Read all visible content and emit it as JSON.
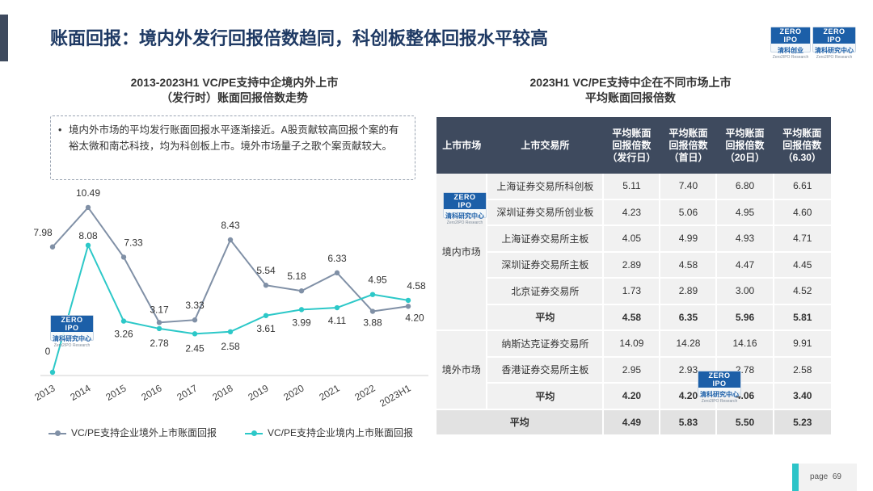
{
  "page_title": "账面回报：境内外发行回报倍数趋同，科创板整体回报水平较高",
  "logo": {
    "brand_left": "ZERO",
    "brand_right": "IPO",
    "cn": "清科研究中心",
    "en": "Zero2IPO Research",
    "top_right_cn": "清科创业"
  },
  "chart": {
    "title_line1": "2013-2023H1 VC/PE支持中企境内外上市",
    "title_line2": "（发行时）账面回报倍数走势",
    "note": "境内外市场的平均发行账面回报水平逐渐接近。A股贡献较高回报个案的有裕太微和南芯科技，均为科创板上市。境外市场量子之歌个案贡献较大。"
  },
  "chart_data": {
    "type": "line",
    "title": "2013-2023H1 VC/PE支持中企境内外上市（发行时）账面回报倍数走势",
    "categories": [
      "2013",
      "2014",
      "2015",
      "2016",
      "2017",
      "2018",
      "2019",
      "2020",
      "2021",
      "2022",
      "2023H1"
    ],
    "series": [
      {
        "name": "VC/PE支持企业境外上市账面回报",
        "color": "#8090a6",
        "values": [
          7.98,
          10.49,
          7.33,
          3.17,
          3.33,
          8.43,
          5.54,
          5.18,
          6.33,
          3.88,
          4.2
        ]
      },
      {
        "name": "VC/PE支持企业境内上市账面回报",
        "color": "#2cc8c8",
        "values": [
          0,
          8.08,
          3.26,
          2.78,
          2.45,
          2.58,
          3.61,
          3.99,
          4.11,
          4.95,
          4.58
        ]
      }
    ],
    "ylim": [
      0,
      11
    ],
    "grid": false,
    "legend": "bottom"
  },
  "table": {
    "title_line1": "2023H1 VC/PE支持中企在不同市场上市",
    "title_line2": "平均账面回报倍数",
    "headers": {
      "market": "上市市场",
      "exchange": "上市交易所",
      "c1": [
        "平均账面",
        "回报倍数",
        "（发行日）"
      ],
      "c2": [
        "平均账面",
        "回报倍数",
        "（首日）"
      ],
      "c3": [
        "平均账面",
        "回报倍数",
        "（20日）"
      ],
      "c4": [
        "平均账面",
        "回报倍数",
        "（6.30）"
      ]
    },
    "domestic_label": "境内市场",
    "overseas_label": "境外市场",
    "domestic_rows": [
      {
        "name": "上海证券交易所科创板",
        "v": [
          "5.11",
          "7.40",
          "6.80",
          "6.61"
        ]
      },
      {
        "name": "深圳证券交易所创业板",
        "v": [
          "4.23",
          "5.06",
          "4.95",
          "4.60"
        ]
      },
      {
        "name": "上海证券交易所主板",
        "v": [
          "4.05",
          "4.99",
          "4.93",
          "4.71"
        ]
      },
      {
        "name": "深圳证券交易所主板",
        "v": [
          "2.89",
          "4.58",
          "4.47",
          "4.45"
        ]
      },
      {
        "name": "北京证券交易所",
        "v": [
          "1.73",
          "2.89",
          "3.00",
          "4.52"
        ]
      },
      {
        "name": "平均",
        "v": [
          "4.58",
          "6.35",
          "5.96",
          "5.81"
        ]
      }
    ],
    "overseas_rows": [
      {
        "name": "纳斯达克证券交易所",
        "v": [
          "14.09",
          "14.28",
          "14.16",
          "9.91"
        ]
      },
      {
        "name": "香港证券交易所主板",
        "v": [
          "2.95",
          "2.93",
          "2.78",
          "2.58"
        ]
      },
      {
        "name": "平均",
        "v": [
          "4.20",
          "4.20",
          "4.06",
          "3.40"
        ]
      }
    ],
    "total_row": {
      "name": "平均",
      "v": [
        "4.49",
        "5.83",
        "5.50",
        "5.23"
      ]
    }
  },
  "footer": {
    "page_label": "page",
    "page_number": "69"
  }
}
